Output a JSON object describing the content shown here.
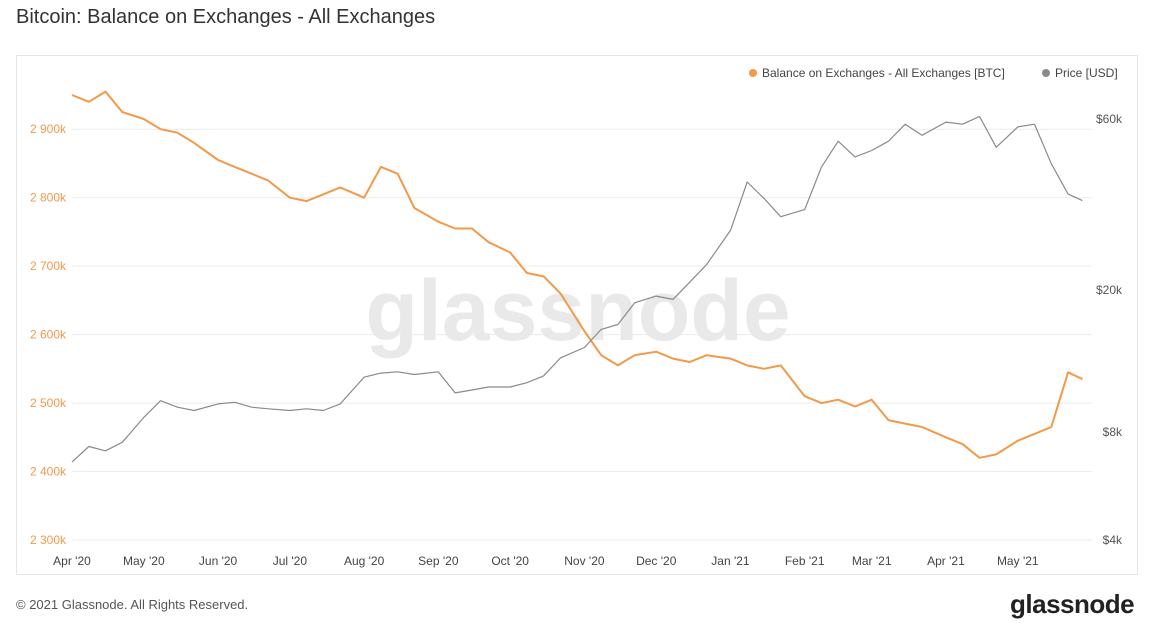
{
  "title": "Bitcoin: Balance on Exchanges - All Exchanges",
  "footer": "© 2021 Glassnode. All Rights Reserved.",
  "brand": "glassnode",
  "watermark": "glassnode",
  "colors": {
    "balance": "#f2994a",
    "price": "#8a8a8a",
    "grid": "#ececec"
  },
  "chart_data": {
    "type": "line",
    "x_ticks": [
      "Apr '20",
      "May '20",
      "Jun '20",
      "Jul '20",
      "Aug '20",
      "Sep '20",
      "Oct '20",
      "Nov '20",
      "Dec '20",
      "Jan '21",
      "Feb '21",
      "Mar '21",
      "Apr '21",
      "May '21"
    ],
    "legend_position": "top-right",
    "grid": true,
    "y_left": {
      "ticks": [
        "2 300k",
        "2 400k",
        "2 500k",
        "2 600k",
        "2 700k",
        "2 800k",
        "2 900k"
      ],
      "range": [
        2300000,
        2950000
      ]
    },
    "y_right": {
      "scale": "log",
      "ticks": [
        "$4k",
        "$8k",
        "$20k",
        "$60k"
      ]
    },
    "series": [
      {
        "name": "Balance on Exchanges - All Exchanges [BTC]",
        "axis": "left",
        "x": [
          "2020-04-01",
          "2020-04-08",
          "2020-04-15",
          "2020-04-22",
          "2020-05-01",
          "2020-05-08",
          "2020-05-15",
          "2020-05-22",
          "2020-06-01",
          "2020-06-08",
          "2020-06-15",
          "2020-06-22",
          "2020-07-01",
          "2020-07-08",
          "2020-07-15",
          "2020-07-22",
          "2020-08-01",
          "2020-08-08",
          "2020-08-15",
          "2020-08-22",
          "2020-09-01",
          "2020-09-08",
          "2020-09-15",
          "2020-09-22",
          "2020-10-01",
          "2020-10-08",
          "2020-10-15",
          "2020-10-22",
          "2020-11-01",
          "2020-11-08",
          "2020-11-15",
          "2020-11-22",
          "2020-12-01",
          "2020-12-08",
          "2020-12-15",
          "2020-12-22",
          "2021-01-01",
          "2021-01-08",
          "2021-01-15",
          "2021-01-22",
          "2021-02-01",
          "2021-02-08",
          "2021-02-15",
          "2021-02-22",
          "2021-03-01",
          "2021-03-08",
          "2021-03-15",
          "2021-03-22",
          "2021-04-01",
          "2021-04-08",
          "2021-04-15",
          "2021-04-22",
          "2021-05-01",
          "2021-05-08",
          "2021-05-15",
          "2021-05-22",
          "2021-05-28"
        ],
        "y": [
          2950000,
          2940000,
          2955000,
          2925000,
          2915000,
          2900000,
          2895000,
          2880000,
          2855000,
          2845000,
          2835000,
          2825000,
          2800000,
          2795000,
          2805000,
          2815000,
          2800000,
          2845000,
          2835000,
          2785000,
          2765000,
          2755000,
          2755000,
          2735000,
          2720000,
          2690000,
          2685000,
          2660000,
          2605000,
          2570000,
          2555000,
          2570000,
          2575000,
          2565000,
          2560000,
          2570000,
          2565000,
          2555000,
          2550000,
          2555000,
          2510000,
          2500000,
          2505000,
          2495000,
          2505000,
          2475000,
          2470000,
          2465000,
          2450000,
          2440000,
          2420000,
          2425000,
          2445000,
          2455000,
          2465000,
          2545000,
          2535000
        ]
      },
      {
        "name": "Price [USD]",
        "axis": "right",
        "x": [
          "2020-04-01",
          "2020-04-08",
          "2020-04-15",
          "2020-04-22",
          "2020-05-01",
          "2020-05-08",
          "2020-05-15",
          "2020-05-22",
          "2020-06-01",
          "2020-06-08",
          "2020-06-15",
          "2020-06-22",
          "2020-07-01",
          "2020-07-08",
          "2020-07-15",
          "2020-07-22",
          "2020-08-01",
          "2020-08-08",
          "2020-08-15",
          "2020-08-22",
          "2020-09-01",
          "2020-09-08",
          "2020-09-15",
          "2020-09-22",
          "2020-10-01",
          "2020-10-08",
          "2020-10-15",
          "2020-10-22",
          "2020-11-01",
          "2020-11-08",
          "2020-11-15",
          "2020-11-22",
          "2020-12-01",
          "2020-12-08",
          "2020-12-15",
          "2020-12-22",
          "2021-01-01",
          "2021-01-08",
          "2021-01-15",
          "2021-01-22",
          "2021-02-01",
          "2021-02-08",
          "2021-02-15",
          "2021-02-22",
          "2021-03-01",
          "2021-03-08",
          "2021-03-15",
          "2021-03-22",
          "2021-04-01",
          "2021-04-08",
          "2021-04-15",
          "2021-04-22",
          "2021-05-01",
          "2021-05-08",
          "2021-05-15",
          "2021-05-22",
          "2021-05-28"
        ],
        "y": [
          6600,
          7300,
          7100,
          7500,
          8800,
          9800,
          9400,
          9200,
          9600,
          9700,
          9400,
          9300,
          9200,
          9300,
          9200,
          9600,
          11400,
          11700,
          11800,
          11600,
          11800,
          10300,
          10500,
          10700,
          10700,
          11000,
          11500,
          12900,
          13800,
          15500,
          16000,
          18400,
          19200,
          18800,
          21000,
          23500,
          29300,
          40000,
          36000,
          32000,
          33500,
          44000,
          52000,
          47000,
          49000,
          52000,
          58000,
          54000,
          58800,
          58000,
          61000,
          50000,
          57000,
          58000,
          45000,
          37000,
          35500
        ]
      }
    ]
  }
}
